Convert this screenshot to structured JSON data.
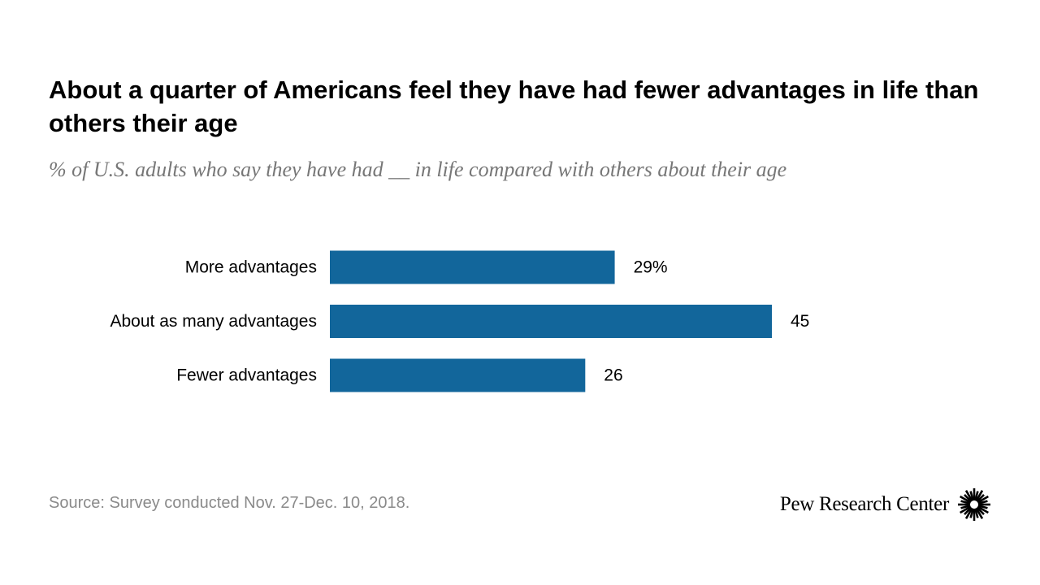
{
  "title": "About a quarter of Americans feel they have had fewer advantages in life than others their age",
  "subtitle": "% of U.S. adults who say they have had __ in life compared with others about their age",
  "source": "Source: Survey conducted Nov. 27-Dec. 10, 2018.",
  "brand": {
    "name": "Pew Research Center",
    "logo_icon": "pew-sunburst-icon"
  },
  "colors": {
    "bar": "#12669b",
    "text": "#000000",
    "muted": "#777777"
  },
  "chart_data": {
    "type": "bar",
    "orientation": "horizontal",
    "categories": [
      "More advantages",
      "About as many advantages",
      "Fewer advantages"
    ],
    "values": [
      29,
      45,
      26
    ],
    "value_labels": [
      "29%",
      "45",
      "26"
    ],
    "unit": "%",
    "xlim": [
      0,
      45
    ],
    "grid": false,
    "legend": "none"
  }
}
